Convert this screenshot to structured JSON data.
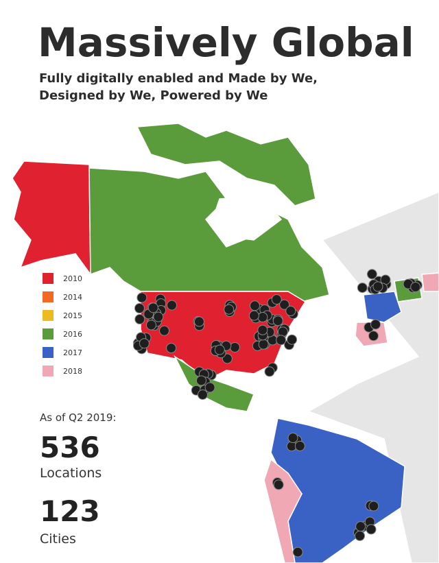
{
  "header": {
    "title": "Massively Global",
    "subtitle": [
      "Fully digitally enabled and Made by We,",
      "Designed by We, Powered by We"
    ]
  },
  "legend": [
    {
      "label": "2010",
      "color": "#e0212f"
    },
    {
      "label": "2014",
      "color": "#f06a24"
    },
    {
      "label": "2015",
      "color": "#ecbb22"
    },
    {
      "label": "2016",
      "color": "#5a9b3c"
    },
    {
      "label": "2017",
      "color": "#3a62c4"
    },
    {
      "label": "2018",
      "color": "#f0a8b4"
    }
  ],
  "stats": {
    "as_of": "As of Q2 2019:",
    "items": [
      {
        "value": 536,
        "label": "Locations"
      },
      {
        "value": 123,
        "label": "Cities"
      }
    ]
  }
}
